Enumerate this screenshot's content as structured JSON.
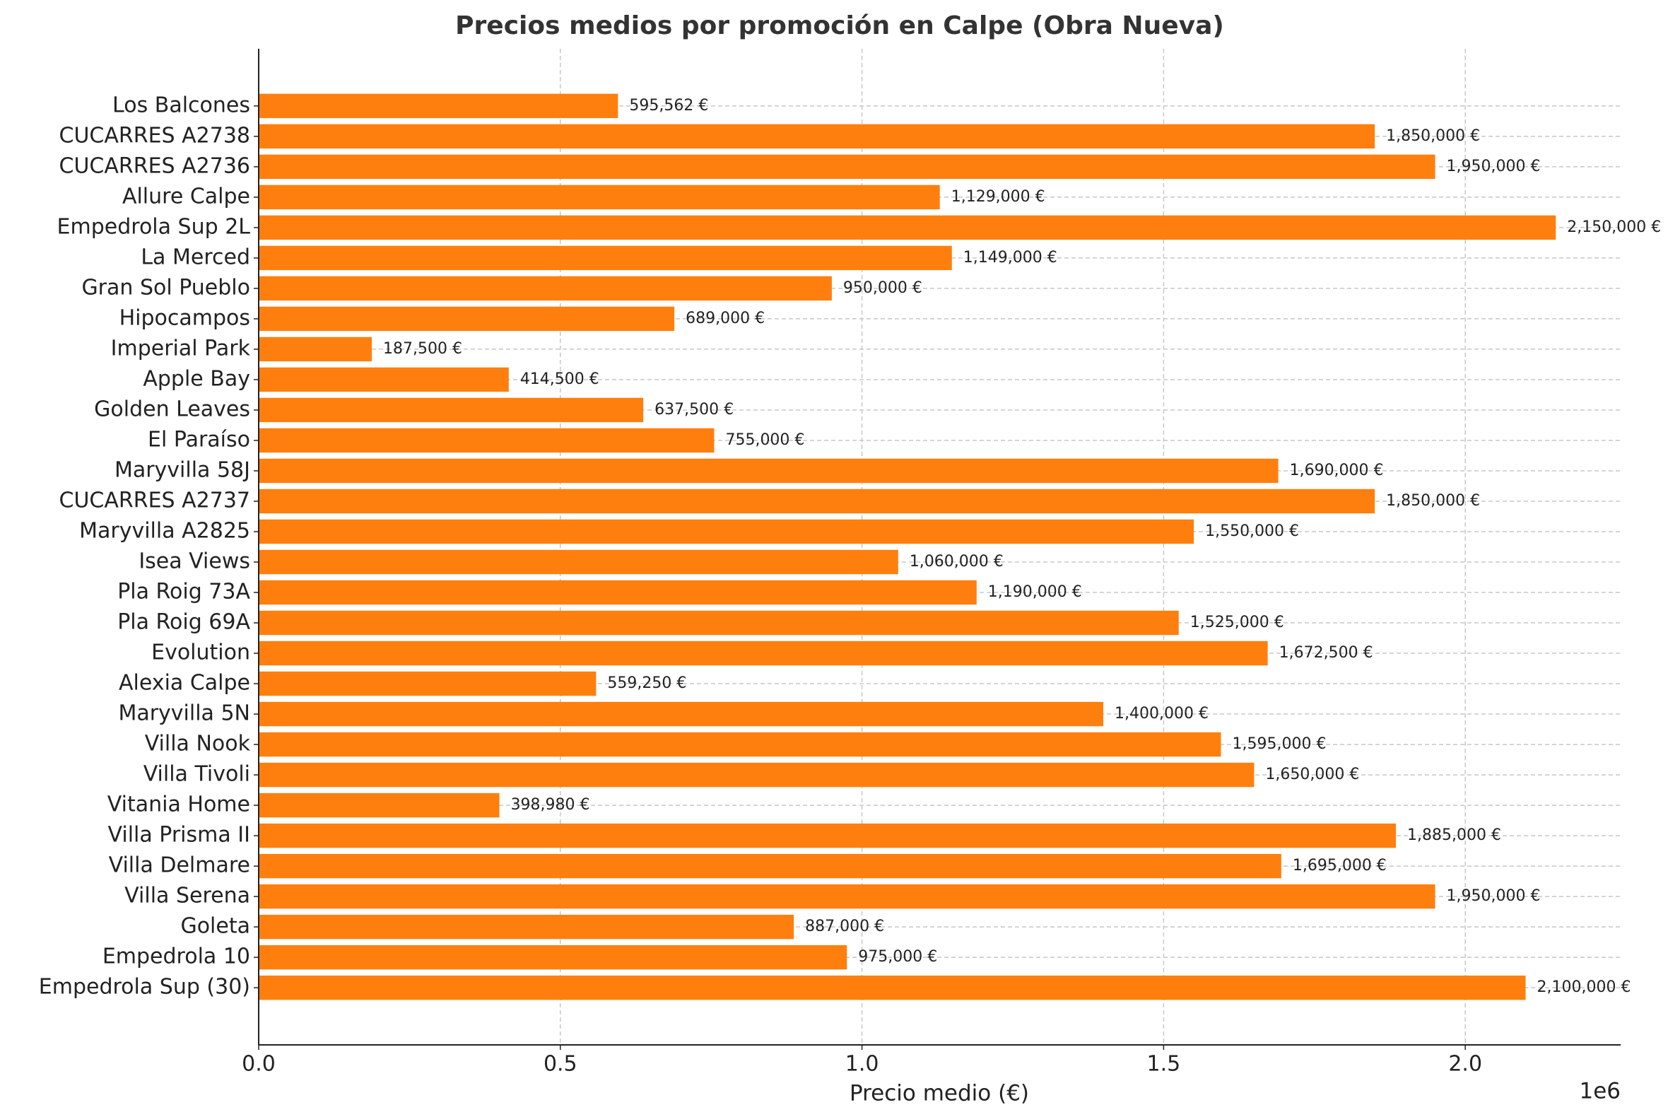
{
  "chart_data": {
    "type": "barh",
    "title": "Precios medios por promoción en Calpe (Obra Nueva)",
    "xlabel": "Precio medio (€)",
    "x_offset_label": "1e6",
    "categories": [
      "Los Balcones",
      "CUCARRES A2738",
      "CUCARRES A2736",
      "Allure Calpe",
      "Empedrola Sup 2L",
      "La Merced",
      "Gran Sol Pueblo",
      "Hipocampos",
      "Imperial Park",
      "Apple Bay",
      "Golden Leaves",
      "El Paraíso",
      "Maryvilla 58J",
      "CUCARRES A2737",
      "Maryvilla A2825",
      "Isea Views",
      "Pla Roig 73A",
      "Pla Roig 69A",
      "Evolution",
      "Alexia Calpe",
      "Maryvilla 5N",
      "Villa Nook",
      "Villa Tivoli",
      "Vitania Home",
      "Villa Prisma II",
      "Villa Delmare",
      "Villa Serena",
      "Goleta",
      "Empedrola 10",
      "Empedrola Sup (30)"
    ],
    "values": [
      595562,
      1850000,
      1950000,
      1129000,
      2150000,
      1149000,
      950000,
      689000,
      187500,
      414500,
      637500,
      755000,
      1690000,
      1850000,
      1550000,
      1060000,
      1190000,
      1525000,
      1672500,
      559250,
      1400000,
      1595000,
      1650000,
      398980,
      1885000,
      1695000,
      1950000,
      887000,
      975000,
      2100000
    ],
    "value_labels": [
      "595,562 €",
      "1,850,000 €",
      "1,950,000 €",
      "1,129,000 €",
      "2,150,000 €",
      "1,149,000 €",
      "950,000 €",
      "689,000 €",
      "187,500 €",
      "414,500 €",
      "637,500 €",
      "755,000 €",
      "1,690,000 €",
      "1,850,000 €",
      "1,550,000 €",
      "1,060,000 €",
      "1,190,000 €",
      "1,525,000 €",
      "1,672,500 €",
      "559,250 €",
      "1,400,000 €",
      "1,595,000 €",
      "1,650,000 €",
      "398,980 €",
      "1,885,000 €",
      "1,695,000 €",
      "1,950,000 €",
      "887,000 €",
      "975,000 €",
      "2,100,000 €"
    ],
    "color": "#ff7f0e",
    "xlim": [
      0,
      2257500
    ],
    "xticks": [
      {
        "value": 0,
        "label": "0.0"
      },
      {
        "value": 500000,
        "label": "0.5"
      },
      {
        "value": 1000000,
        "label": "1.0"
      },
      {
        "value": 1500000,
        "label": "1.5"
      },
      {
        "value": 2000000,
        "label": "2.0"
      }
    ],
    "grid": true
  }
}
